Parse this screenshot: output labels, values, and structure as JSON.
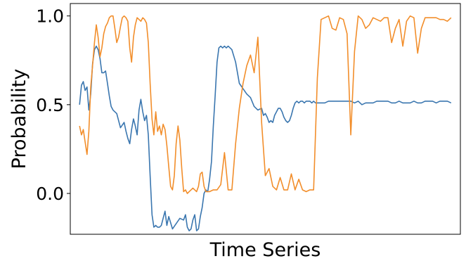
{
  "chart_data": {
    "type": "line",
    "title": "",
    "xlabel": "Time Series",
    "ylabel": "Probability",
    "ylim": [
      -0.23,
      1.07
    ],
    "xlim": [
      -5,
      205
    ],
    "grid": false,
    "legend": "none",
    "x_ticks_shown": false,
    "y_ticks": [
      {
        "value": 0.0,
        "label": "0.0"
      },
      {
        "value": 0.5,
        "label": "0.5"
      },
      {
        "value": 1.0,
        "label": "1.0"
      }
    ],
    "series": [
      {
        "color": "#3a76af",
        "x": [
          0,
          1,
          2,
          3,
          4,
          5,
          6,
          7,
          8,
          9,
          10,
          11,
          12,
          13,
          14,
          15,
          16,
          17,
          18,
          20,
          22,
          24,
          25,
          26,
          27,
          28,
          29,
          30,
          31,
          32,
          33,
          34,
          35,
          36,
          37,
          38,
          39,
          40,
          41,
          42,
          43,
          44,
          45,
          46,
          47,
          48,
          50,
          52,
          54,
          56,
          57,
          58,
          59,
          60,
          61,
          62,
          63,
          64,
          65,
          66,
          67,
          68,
          69,
          70,
          71,
          72,
          73,
          74,
          75,
          76,
          77,
          78,
          79,
          80,
          81,
          82,
          84,
          86,
          88,
          90,
          92,
          94,
          96,
          98,
          99,
          100,
          101,
          102,
          103,
          104,
          105,
          106,
          107,
          108,
          109,
          110,
          111,
          112,
          113,
          114,
          115,
          116,
          117,
          118,
          119,
          120,
          121,
          122,
          123,
          124,
          125,
          126,
          127,
          128,
          130,
          132,
          134,
          136,
          138,
          140,
          142,
          144,
          146,
          148,
          150,
          152,
          154,
          156,
          158,
          160,
          162,
          164,
          166,
          168,
          170,
          172,
          174,
          176,
          178,
          180,
          182,
          184,
          186,
          188,
          190,
          192,
          194,
          196,
          198,
          200
        ],
        "y": [
          0.5,
          0.61,
          0.63,
          0.58,
          0.6,
          0.47,
          0.56,
          0.73,
          0.81,
          0.83,
          0.81,
          0.76,
          0.68,
          0.68,
          0.69,
          0.62,
          0.55,
          0.49,
          0.47,
          0.45,
          0.37,
          0.4,
          0.35,
          0.31,
          0.28,
          0.36,
          0.42,
          0.38,
          0.33,
          0.47,
          0.53,
          0.46,
          0.41,
          0.44,
          0.33,
          0.1,
          -0.12,
          -0.19,
          -0.18,
          -0.19,
          -0.19,
          -0.18,
          -0.14,
          -0.1,
          -0.18,
          -0.13,
          -0.2,
          -0.17,
          -0.14,
          -0.15,
          -0.12,
          -0.19,
          -0.21,
          -0.2,
          -0.15,
          -0.12,
          -0.21,
          -0.2,
          -0.13,
          -0.08,
          0.0,
          0.02,
          0.01,
          0.08,
          0.18,
          0.38,
          0.55,
          0.74,
          0.82,
          0.83,
          0.82,
          0.83,
          0.82,
          0.83,
          0.82,
          0.81,
          0.74,
          0.62,
          0.59,
          0.56,
          0.54,
          0.49,
          0.47,
          0.48,
          0.44,
          0.45,
          0.43,
          0.4,
          0.41,
          0.4,
          0.44,
          0.46,
          0.48,
          0.48,
          0.46,
          0.43,
          0.41,
          0.4,
          0.41,
          0.44,
          0.48,
          0.51,
          0.52,
          0.51,
          0.52,
          0.52,
          0.51,
          0.52,
          0.52,
          0.52,
          0.51,
          0.52,
          0.51,
          0.51,
          0.51,
          0.51,
          0.52,
          0.52,
          0.52,
          0.52,
          0.52,
          0.52,
          0.52,
          0.51,
          0.52,
          0.5,
          0.51,
          0.51,
          0.51,
          0.52,
          0.52,
          0.52,
          0.52,
          0.51,
          0.51,
          0.52,
          0.51,
          0.51,
          0.51,
          0.52,
          0.51,
          0.51,
          0.52,
          0.52,
          0.52,
          0.51,
          0.52,
          0.52,
          0.52,
          0.51
        ]
      },
      {
        "color": "#f28e2b",
        "x": [
          0,
          1,
          2,
          3,
          4,
          5,
          6,
          7,
          8,
          9,
          10,
          11,
          12,
          13,
          14,
          15,
          16,
          17,
          18,
          19,
          20,
          21,
          22,
          23,
          24,
          25,
          26,
          27,
          28,
          29,
          30,
          31,
          32,
          33,
          34,
          35,
          36,
          37,
          38,
          39,
          40,
          41,
          42,
          43,
          44,
          45,
          46,
          47,
          48,
          49,
          50,
          51,
          52,
          53,
          54,
          55,
          56,
          57,
          58,
          59,
          60,
          61,
          62,
          63,
          64,
          65,
          66,
          67,
          68,
          70,
          72,
          74,
          76,
          78,
          80,
          82,
          84,
          86,
          88,
          90,
          92,
          94,
          96,
          98,
          100,
          102,
          104,
          106,
          108,
          110,
          112,
          114,
          116,
          118,
          120,
          122,
          124,
          126,
          128,
          130,
          132,
          134,
          136,
          138,
          140,
          142,
          144,
          146,
          148,
          150,
          152,
          154,
          156,
          158,
          160,
          162,
          164,
          166,
          168,
          170,
          172,
          174,
          176,
          178,
          180,
          182,
          184,
          186,
          188,
          190,
          192,
          194,
          196,
          198,
          200
        ],
        "y": [
          0.38,
          0.33,
          0.36,
          0.29,
          0.22,
          0.35,
          0.6,
          0.72,
          0.85,
          0.95,
          0.88,
          0.77,
          0.82,
          0.9,
          0.94,
          0.96,
          0.99,
          1.0,
          1.0,
          0.93,
          0.85,
          0.88,
          0.94,
          0.99,
          1.0,
          0.99,
          0.97,
          0.82,
          0.74,
          0.88,
          0.95,
          0.99,
          0.98,
          0.97,
          0.99,
          0.98,
          0.96,
          0.85,
          0.62,
          0.42,
          0.33,
          0.46,
          0.35,
          0.38,
          0.33,
          0.39,
          0.36,
          0.27,
          0.15,
          0.04,
          0.02,
          0.1,
          0.28,
          0.38,
          0.3,
          0.14,
          0.01,
          0.02,
          0.0,
          0.01,
          0.02,
          0.03,
          0.02,
          0.01,
          0.04,
          0.11,
          0.12,
          0.04,
          0.01,
          0.01,
          0.02,
          0.02,
          0.05,
          0.23,
          0.02,
          0.02,
          0.28,
          0.48,
          0.62,
          0.72,
          0.78,
          0.68,
          0.88,
          0.4,
          0.1,
          0.14,
          0.04,
          0.02,
          0.09,
          0.02,
          0.02,
          0.11,
          0.02,
          0.08,
          0.02,
          0.01,
          0.02,
          0.02,
          0.65,
          0.98,
          0.99,
          1.0,
          0.93,
          0.92,
          0.99,
          0.98,
          0.9,
          0.33,
          0.8,
          1.0,
          0.98,
          0.93,
          0.95,
          0.99,
          0.98,
          0.97,
          0.99,
          0.99,
          0.85,
          0.93,
          0.98,
          0.83,
          0.97,
          1.0,
          0.99,
          0.79,
          0.93,
          0.99,
          0.99,
          0.99,
          0.99,
          0.98,
          0.98,
          0.97,
          0.99
        ]
      }
    ]
  }
}
